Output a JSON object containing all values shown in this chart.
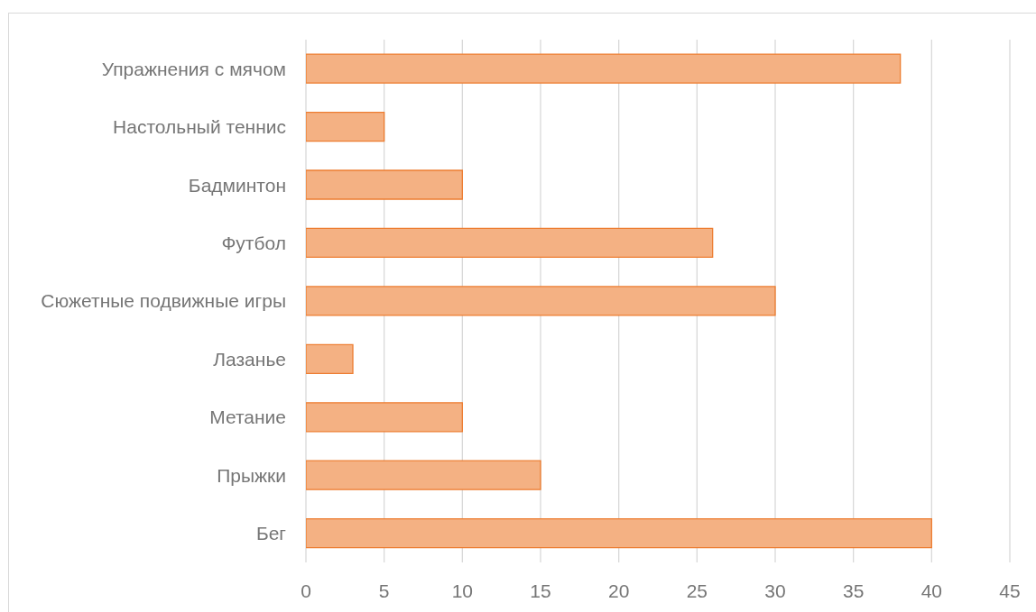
{
  "chart_data": {
    "type": "bar",
    "orientation": "horizontal",
    "categories": [
      "Упражнения с мячом",
      "Настольный теннис",
      "Бадминтон",
      "Футбол",
      "Сюжетные подвижные игры",
      "Лазанье",
      "Метание",
      "Прыжки",
      "Бег"
    ],
    "values": [
      38,
      5,
      10,
      26,
      30,
      3,
      10,
      15,
      40
    ],
    "color": "#f4b183",
    "xlim": [
      0,
      45
    ],
    "xticks": [
      0,
      5,
      10,
      15,
      20,
      25,
      30,
      35,
      40,
      45
    ],
    "grid": "x"
  }
}
